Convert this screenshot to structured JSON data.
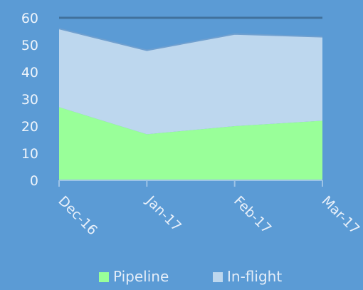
{
  "chart_data": {
    "type": "area",
    "stacked": true,
    "categories": [
      "Dec-16",
      "Jan-17",
      "Feb-17",
      "Mar-17"
    ],
    "series": [
      {
        "name": "Pipeline",
        "values": [
          27,
          17,
          20,
          22
        ],
        "color": "#99ff99"
      },
      {
        "name": "In-flight",
        "values": [
          29,
          31,
          34,
          31
        ],
        "color": "#bdd7ee"
      }
    ],
    "ylim": [
      0,
      60
    ],
    "yticks": [
      0,
      10,
      20,
      30,
      40,
      50,
      60
    ],
    "grid": false,
    "legend": "bottom",
    "background": "#5b9bd5",
    "axis_color": "#9dc3e6"
  }
}
